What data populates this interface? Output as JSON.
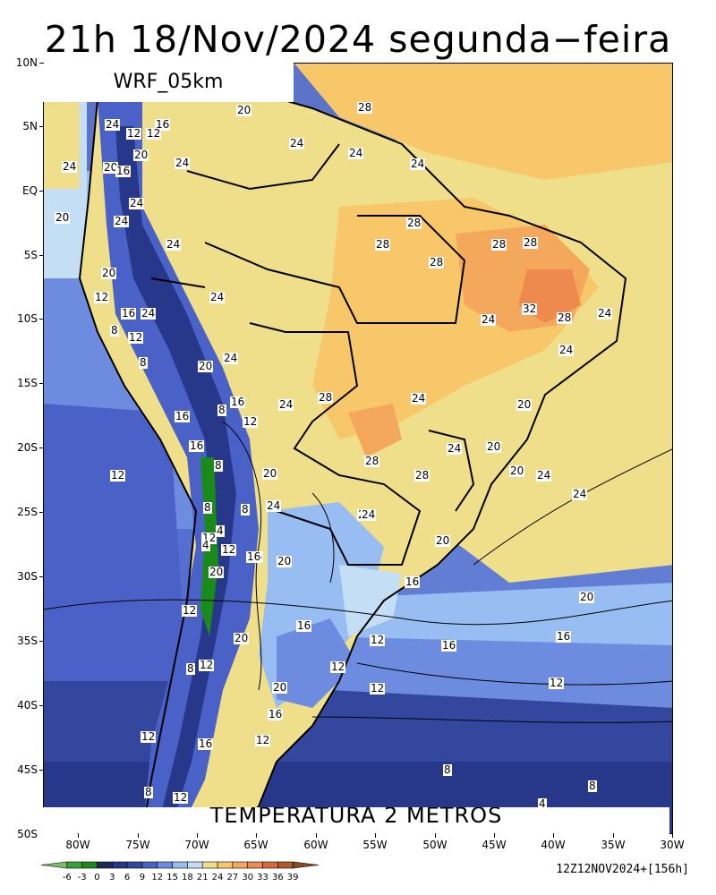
{
  "title": "21h 18/Nov/2024 segunda−feira",
  "model_label": "WRF_05km",
  "field_label": "TEMPERATURA 2 METROS",
  "init_label": "12Z12NOV2024+[156h]",
  "map": {
    "lon_range": [
      -83,
      -30
    ],
    "lat_range": [
      -50,
      10
    ],
    "lat_ticks": [
      "10N",
      "5N",
      "EQ",
      "5S",
      "10S",
      "15S",
      "20S",
      "25S",
      "30S",
      "35S",
      "40S",
      "45S",
      "50S"
    ],
    "lon_ticks": [
      "80W",
      "75W",
      "70W",
      "65W",
      "60W",
      "55W",
      "50W",
      "45W",
      "40W",
      "35W",
      "30W"
    ],
    "contour_labels": [
      "20",
      "28",
      "24",
      "16",
      "12",
      "12",
      "24",
      "20",
      "24",
      "20",
      "24",
      "24",
      "16",
      "24",
      "24",
      "20",
      "24",
      "28",
      "24",
      "28",
      "28",
      "28",
      "28",
      "20",
      "24",
      "12",
      "16",
      "24",
      "8",
      "12",
      "24",
      "32",
      "28",
      "24",
      "8",
      "20",
      "24",
      "24",
      "16",
      "8",
      "16",
      "12",
      "24",
      "28",
      "24",
      "20",
      "20",
      "16",
      "8",
      "24",
      "12",
      "28",
      "28",
      "24",
      "20",
      "24",
      "20",
      "24",
      "24",
      "16",
      "12",
      "8",
      "8",
      "4",
      "12",
      "24",
      "4",
      "20",
      "20",
      "16",
      "16",
      "20",
      "20",
      "12",
      "16",
      "20",
      "12",
      "16",
      "16",
      "12",
      "8",
      "12",
      "12",
      "20",
      "16",
      "12",
      "16",
      "12",
      "12",
      "8",
      "8",
      "8",
      "4",
      "12"
    ]
  },
  "colorbar": {
    "labels": [
      "-6",
      "-3",
      "0",
      "3",
      "6",
      "9",
      "12",
      "15",
      "18",
      "21",
      "24",
      "27",
      "30",
      "33",
      "36",
      "39"
    ],
    "colors": [
      "#7ac26b",
      "#3aa238",
      "#1a8a1a",
      "#1c2a55",
      "#27378a",
      "#33479f",
      "#4a62c8",
      "#6d8ce0",
      "#98bdf2",
      "#c4def6",
      "#f0df8a",
      "#f7c76a",
      "#f4a85c",
      "#ee8a4e",
      "#d86a3c",
      "#b25a2a",
      "#8a4a20"
    ]
  }
}
